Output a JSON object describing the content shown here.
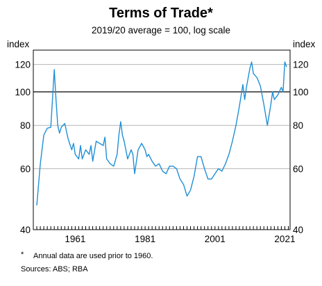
{
  "chart_data": {
    "type": "line",
    "title": "Terms of Trade*",
    "subtitle": "2019/20 average = 100, log scale",
    "ylabel_left": "index",
    "ylabel_right": "index",
    "y_scale": "log",
    "ylim": [
      40,
      132
    ],
    "y_ticks": [
      40,
      60,
      80,
      100,
      120
    ],
    "x_ticks": [
      "1961",
      "1981",
      "2001",
      "2021"
    ],
    "xlim": [
      1949,
      2022.5
    ],
    "reference_line": 100,
    "line_color": "#1f8fd6",
    "series": [
      {
        "points": [
          [
            1950,
            47
          ],
          [
            1951,
            62
          ],
          [
            1952,
            75
          ],
          [
            1953,
            78.5
          ],
          [
            1954,
            79
          ],
          [
            1955,
            116
          ],
          [
            1955.5,
            95
          ],
          [
            1956,
            80
          ],
          [
            1956.5,
            76
          ],
          [
            1957,
            79
          ],
          [
            1958,
            81
          ],
          [
            1959,
            73
          ],
          [
            1960,
            68
          ],
          [
            1960.5,
            71
          ],
          [
            1961,
            66
          ],
          [
            1962,
            64
          ],
          [
            1962.5,
            70
          ],
          [
            1963,
            64
          ],
          [
            1964,
            68
          ],
          [
            1965,
            66
          ],
          [
            1965.5,
            70
          ],
          [
            1966,
            63
          ],
          [
            1967,
            72
          ],
          [
            1968,
            71
          ],
          [
            1969,
            70
          ],
          [
            1969.5,
            74
          ],
          [
            1970,
            64
          ],
          [
            1971,
            62
          ],
          [
            1972,
            61
          ],
          [
            1973,
            66
          ],
          [
            1973.5,
            75
          ],
          [
            1974,
            82
          ],
          [
            1974.5,
            75
          ],
          [
            1975,
            72
          ],
          [
            1976,
            64
          ],
          [
            1977,
            68
          ],
          [
            1977.5,
            66
          ],
          [
            1978,
            58
          ],
          [
            1979,
            68
          ],
          [
            1980,
            71
          ],
          [
            1981,
            68
          ],
          [
            1981.5,
            65
          ],
          [
            1982,
            66
          ],
          [
            1983,
            63
          ],
          [
            1984,
            61
          ],
          [
            1985,
            62
          ],
          [
            1986,
            59
          ],
          [
            1987,
            58
          ],
          [
            1988,
            61
          ],
          [
            1989,
            61
          ],
          [
            1990,
            60
          ],
          [
            1991,
            56
          ],
          [
            1992,
            54
          ],
          [
            1993,
            50
          ],
          [
            1994,
            52
          ],
          [
            1995,
            57
          ],
          [
            1996,
            65
          ],
          [
            1997,
            65
          ],
          [
            1998,
            60
          ],
          [
            1999,
            56
          ],
          [
            2000,
            56
          ],
          [
            2001,
            58
          ],
          [
            2002,
            60
          ],
          [
            2003,
            59
          ],
          [
            2004,
            62
          ],
          [
            2005,
            66
          ],
          [
            2006,
            72
          ],
          [
            2007,
            80
          ],
          [
            2008,
            91
          ],
          [
            2009,
            105
          ],
          [
            2009.5,
            95
          ],
          [
            2010,
            103
          ],
          [
            2011,
            117
          ],
          [
            2011.5,
            122
          ],
          [
            2012,
            113
          ],
          [
            2013,
            110
          ],
          [
            2014,
            104
          ],
          [
            2015,
            92
          ],
          [
            2016,
            80
          ],
          [
            2017,
            92
          ],
          [
            2017.5,
            100
          ],
          [
            2018,
            95
          ],
          [
            2019,
            98
          ],
          [
            2020,
            103
          ],
          [
            2020.5,
            100
          ],
          [
            2021,
            122
          ],
          [
            2021.5,
            118
          ]
        ]
      }
    ]
  },
  "footnote": {
    "marker": "*",
    "text": "Annual data are used prior to 1960."
  },
  "sources": "Sources: ABS; RBA"
}
